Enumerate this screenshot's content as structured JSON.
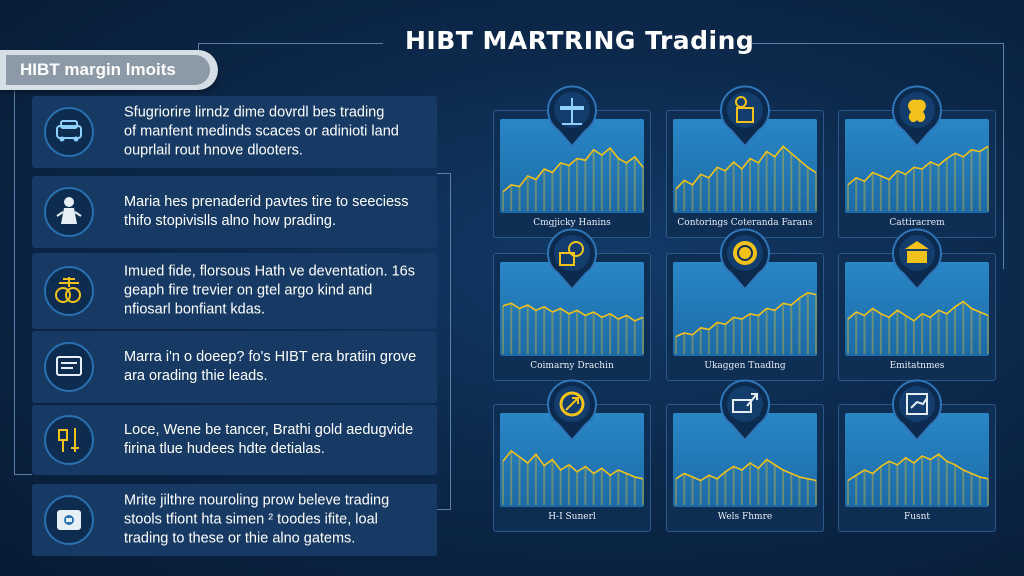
{
  "title": "HIBT MARTRING Trading",
  "tag": "HIBT margin lmoits",
  "rows": [
    {
      "icon": "car-icon",
      "lines": [
        "Sfugriorire lirndz dime dovrdl bes trading",
        "of manfent medinds scaces or adinioti land",
        "ouprlail rout hnove dlooters."
      ]
    },
    {
      "icon": "person-icon",
      "lines": [
        "Maria hes prenaderid pavtes tire to seeciess",
        "thifo stopivislls alno how prading."
      ]
    },
    {
      "icon": "coins-icon",
      "lines": [
        "Imued fide, florsous Hath ve deventation. 16s",
        "geaph fire trevier on gtel argo kind and",
        "nfiosarl bonfiant kdas."
      ]
    },
    {
      "icon": "document-icon",
      "lines": [
        "Marra i'n o doeep? fo's HIBT era bratiin grove",
        "ara orading thie leads."
      ]
    },
    {
      "icon": "tools-icon",
      "lines": [
        "Loce, Wene be tancer, Brathi gold aedugvide",
        "firina tlue hudees hdte detialas."
      ]
    },
    {
      "icon": "wallet-icon",
      "lines": [
        "Mrite jilthre nouroling prow beleve trading",
        "stools tfiont hta simen ² toodes ifite, loal",
        "trading to these or thie alno gatems."
      ]
    }
  ],
  "cards": [
    {
      "label": "Cmgjicky Hanins",
      "icon": "balance-scale-icon",
      "values": [
        22,
        30,
        28,
        40,
        36,
        48,
        44,
        55,
        52,
        60,
        58,
        70,
        64,
        72,
        60,
        55,
        62,
        50
      ]
    },
    {
      "label": "Contorings Coteranda Farans",
      "icon": "analyst-icon",
      "values": [
        25,
        35,
        30,
        42,
        38,
        50,
        46,
        56,
        48,
        60,
        55,
        68,
        62,
        74,
        66,
        58,
        50,
        44
      ]
    },
    {
      "label": "Cattiracrem",
      "icon": "fan-icon",
      "values": [
        30,
        38,
        34,
        44,
        40,
        36,
        46,
        42,
        50,
        48,
        56,
        52,
        60,
        66,
        62,
        70,
        68,
        74
      ]
    },
    {
      "label": "Coimarny Drachin",
      "icon": "gear-chart-icon",
      "values": [
        55,
        58,
        52,
        56,
        50,
        54,
        48,
        52,
        46,
        50,
        44,
        48,
        42,
        46,
        40,
        44,
        38,
        42
      ]
    },
    {
      "label": "Ukaggen Tnadlng",
      "icon": "coin-icon",
      "values": [
        20,
        24,
        22,
        30,
        28,
        36,
        34,
        42,
        40,
        46,
        44,
        52,
        50,
        58,
        56,
        64,
        70,
        68
      ]
    },
    {
      "label": "Emitatnmes",
      "icon": "bank-icon",
      "values": [
        40,
        48,
        44,
        52,
        46,
        42,
        50,
        44,
        38,
        46,
        42,
        50,
        46,
        54,
        60,
        52,
        48,
        44
      ]
    },
    {
      "label": "H-I Sunerl",
      "icon": "target-arrow-icon",
      "values": [
        50,
        62,
        55,
        48,
        58,
        45,
        52,
        40,
        46,
        38,
        44,
        36,
        42,
        34,
        40,
        36,
        32,
        30
      ]
    },
    {
      "label": "Wels Fhmre",
      "icon": "trend-arrow-icon",
      "values": [
        30,
        36,
        32,
        28,
        34,
        30,
        38,
        44,
        40,
        48,
        42,
        52,
        46,
        40,
        36,
        32,
        30,
        28
      ]
    },
    {
      "label": "Fusnt",
      "icon": "growth-board-icon",
      "values": [
        28,
        34,
        40,
        36,
        44,
        50,
        46,
        54,
        48,
        56,
        52,
        58,
        50,
        46,
        40,
        36,
        32,
        30
      ]
    }
  ],
  "colors": {
    "accent": "#f2c21a",
    "card": "#0f2e54",
    "chart": "#2a87c6"
  }
}
